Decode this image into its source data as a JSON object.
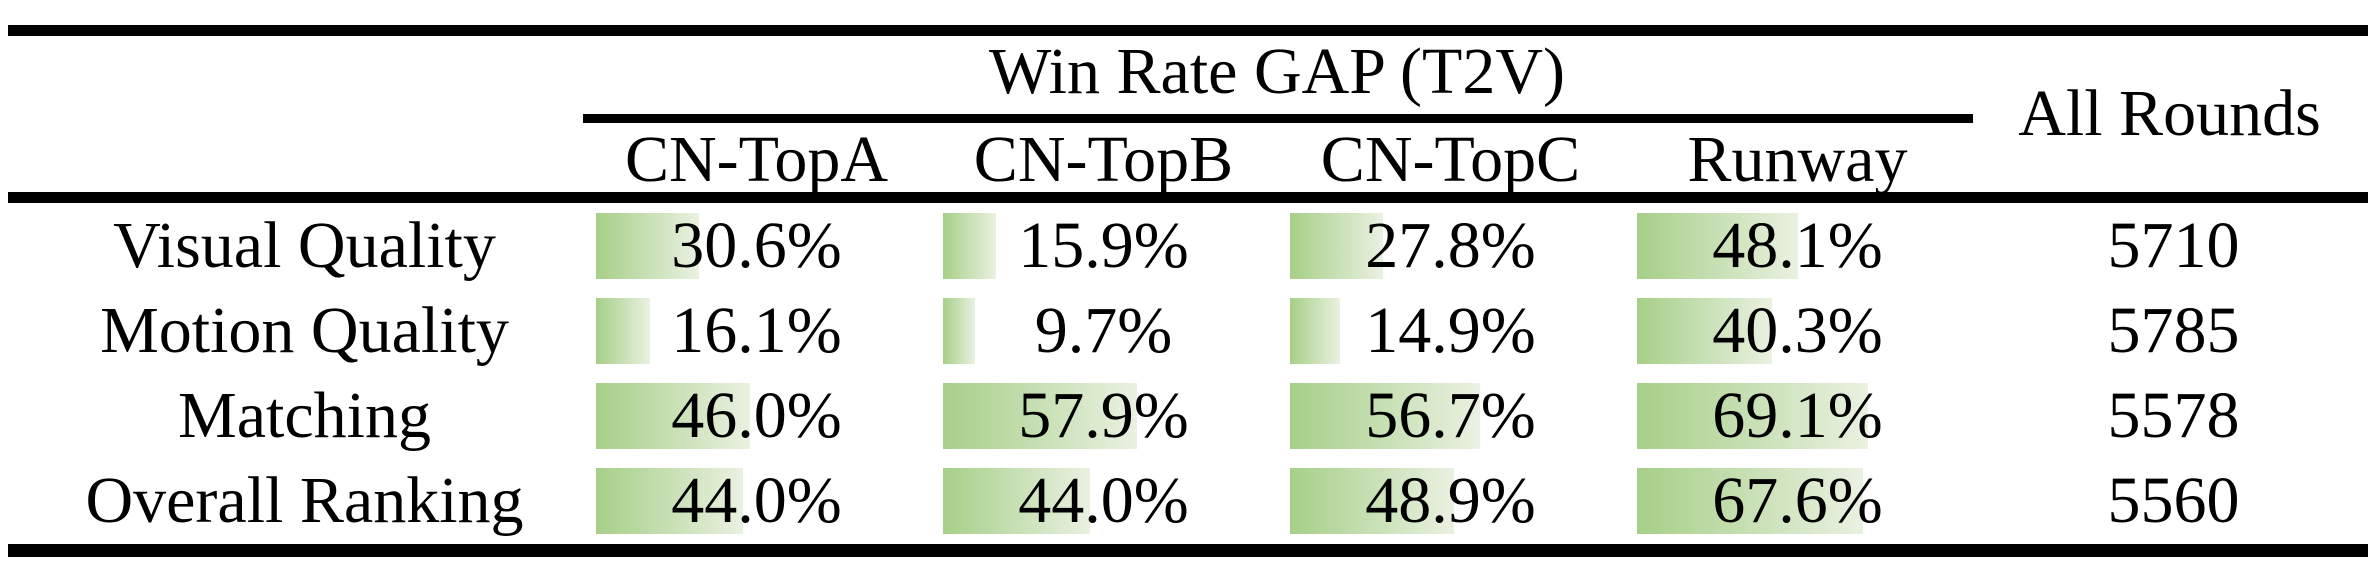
{
  "table": {
    "group_header": "Win Rate GAP (T2V)",
    "all_rounds_header": "All Rounds",
    "columns": [
      "CN-TopA",
      "CN-TopB",
      "CN-TopC",
      "Runway"
    ],
    "rows": [
      {
        "label": "Visual Quality",
        "cells": [
          {
            "text": "30.6%",
            "pct": 30.6
          },
          {
            "text": "15.9%",
            "pct": 15.9
          },
          {
            "text": "27.8%",
            "pct": 27.8
          },
          {
            "text": "48.1%",
            "pct": 48.1
          }
        ],
        "all_rounds": "5710"
      },
      {
        "label": "Motion Quality",
        "cells": [
          {
            "text": "16.1%",
            "pct": 16.1
          },
          {
            "text": "9.7%",
            "pct": 9.7
          },
          {
            "text": "14.9%",
            "pct": 14.9
          },
          {
            "text": "40.3%",
            "pct": 40.3
          }
        ],
        "all_rounds": "5785"
      },
      {
        "label": "Matching",
        "cells": [
          {
            "text": "46.0%",
            "pct": 46.0
          },
          {
            "text": "57.9%",
            "pct": 57.9
          },
          {
            "text": "56.7%",
            "pct": 56.7
          },
          {
            "text": "69.1%",
            "pct": 69.1
          }
        ],
        "all_rounds": "5578"
      },
      {
        "label": "Overall Ranking",
        "cells": [
          {
            "text": "44.0%",
            "pct": 44.0
          },
          {
            "text": "44.0%",
            "pct": 44.0
          },
          {
            "text": "48.9%",
            "pct": 48.9
          },
          {
            "text": "67.6%",
            "pct": 67.6
          }
        ],
        "all_rounds": "5560"
      }
    ],
    "colors": {
      "bar_gradient_start": "#a6cf88",
      "bar_gradient_end": "#eaf1e1",
      "rule": "#000000",
      "text": "#000000",
      "background": "#ffffff"
    }
  }
}
